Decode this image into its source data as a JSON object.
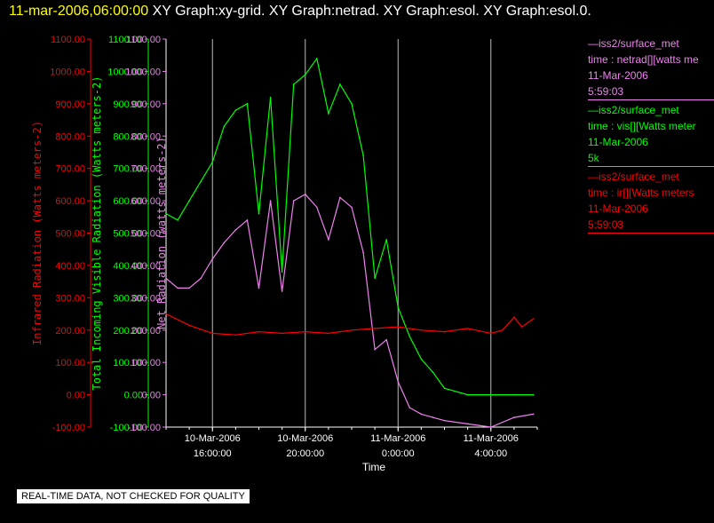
{
  "header": {
    "timestamp": "11-mar-2006,06:00:00",
    "titles": "XY Graph:xy-grid.  XY Graph:netrad.  XY Graph:esol.  XY Graph:esol.0."
  },
  "legend": [
    {
      "line1": "—iss2/surface_met",
      "line2": "time : netrad[][watts me",
      "line3": "11-Mar-2006",
      "line4": "5:59:03",
      "color": "#ee82ee"
    },
    {
      "line1": "—iss2/surface_met",
      "line2": "time : vis[][Watts meter",
      "line3": "11-Mar-2006",
      "line4": "5k",
      "color": "#00ff00"
    },
    {
      "line1": "—iss2/surface_met",
      "line2": "time : ir[][Watts meters",
      "line3": "11-Mar-2006",
      "line4": "5:59:03",
      "color": "#ff0000"
    }
  ],
  "footer": {
    "qc_note": "REAL-TIME DATA, NOT CHECKED FOR QUALITY"
  },
  "chart_data": {
    "type": "line",
    "xlabel": "Time",
    "x_range": [
      "2006-03-10 14:00",
      "2006-03-11 06:00"
    ],
    "x_ticks": [
      {
        "label1": "10-Mar-2006",
        "label2": "16:00:00",
        "x": "2006-03-10 16:00"
      },
      {
        "label1": "10-Mar-2006",
        "label2": "20:00:00",
        "x": "2006-03-10 20:00"
      },
      {
        "label1": "11-Mar-2006",
        "label2": "0:00:00",
        "x": "2006-03-11 00:00"
      },
      {
        "label1": "11-Mar-2006",
        "label2": "4:00:00",
        "x": "2006-03-11 04:00"
      }
    ],
    "y_axes": [
      {
        "label": "Infrared Radiation (Watts meters-2)",
        "color": "#ff0000",
        "ylim": [
          -100,
          1100
        ]
      },
      {
        "label": "Total Incoming Visible Radiation (Watts meters-2)",
        "color": "#00ff00",
        "ylim": [
          -100,
          1100
        ]
      },
      {
        "label": "Net Radiation (watts meters-2)",
        "color": "#ee82ee",
        "ylim": [
          -100,
          1100
        ]
      }
    ],
    "y_ticks": [
      "1100.00",
      "1000.00",
      "900.00",
      "800.00",
      "700.00",
      "600.00",
      "500.00",
      "400.00",
      "300.00",
      "200.00",
      "100.00",
      "0.00",
      "-100.00"
    ],
    "grid": "vertical lines at major x ticks",
    "series": [
      {
        "name": "iss2/surface_met time : vis[][Watts meters-2]",
        "color": "#00ff00",
        "x": [
          "2006-03-10 14:00",
          "2006-03-10 14:30",
          "2006-03-10 15:00",
          "2006-03-10 15:30",
          "2006-03-10 16:00",
          "2006-03-10 16:30",
          "2006-03-10 17:00",
          "2006-03-10 17:30",
          "2006-03-10 18:00",
          "2006-03-10 18:30",
          "2006-03-10 19:00",
          "2006-03-10 19:30",
          "2006-03-10 20:00",
          "2006-03-10 20:30",
          "2006-03-10 21:00",
          "2006-03-10 21:30",
          "2006-03-10 22:00",
          "2006-03-10 22:30",
          "2006-03-10 23:00",
          "2006-03-10 23:30",
          "2006-03-11 00:00",
          "2006-03-11 00:30",
          "2006-03-11 01:00",
          "2006-03-11 01:30",
          "2006-03-11 02:00",
          "2006-03-11 03:00",
          "2006-03-11 04:00",
          "2006-03-11 05:00",
          "2006-03-11 05:50"
        ],
        "y": [
          560,
          540,
          600,
          660,
          720,
          830,
          880,
          900,
          560,
          920,
          380,
          960,
          990,
          1040,
          870,
          960,
          900,
          740,
          360,
          480,
          270,
          180,
          110,
          70,
          20,
          0,
          0,
          0,
          0
        ]
      },
      {
        "name": "iss2/surface_met time : netrad[][watts meters-2]",
        "color": "#ee82ee",
        "x": [
          "2006-03-10 14:00",
          "2006-03-10 14:30",
          "2006-03-10 15:00",
          "2006-03-10 15:30",
          "2006-03-10 16:00",
          "2006-03-10 16:30",
          "2006-03-10 17:00",
          "2006-03-10 17:30",
          "2006-03-10 18:00",
          "2006-03-10 18:30",
          "2006-03-10 19:00",
          "2006-03-10 19:30",
          "2006-03-10 20:00",
          "2006-03-10 20:30",
          "2006-03-10 21:00",
          "2006-03-10 21:30",
          "2006-03-10 22:00",
          "2006-03-10 22:30",
          "2006-03-10 23:00",
          "2006-03-10 23:30",
          "2006-03-11 00:00",
          "2006-03-11 00:30",
          "2006-03-11 01:00",
          "2006-03-11 01:30",
          "2006-03-11 02:00",
          "2006-03-11 03:00",
          "2006-03-11 04:00",
          "2006-03-11 05:00",
          "2006-03-11 05:50"
        ],
        "y": [
          360,
          330,
          330,
          360,
          420,
          470,
          510,
          540,
          330,
          600,
          320,
          600,
          620,
          580,
          480,
          610,
          580,
          440,
          140,
          170,
          40,
          -40,
          -60,
          -70,
          -80,
          -90,
          -100,
          -70,
          -60
        ]
      },
      {
        "name": "iss2/surface_met time : ir[][Watts meters-2]",
        "color": "#ff0000",
        "x": [
          "2006-03-10 14:00",
          "2006-03-10 15:00",
          "2006-03-10 16:00",
          "2006-03-10 17:00",
          "2006-03-10 18:00",
          "2006-03-10 19:00",
          "2006-03-10 20:00",
          "2006-03-10 21:00",
          "2006-03-10 22:00",
          "2006-03-10 23:00",
          "2006-03-11 00:00",
          "2006-03-11 01:00",
          "2006-03-11 02:00",
          "2006-03-11 03:00",
          "2006-03-11 04:00",
          "2006-03-11 04:30",
          "2006-03-11 05:00",
          "2006-03-11 05:20",
          "2006-03-11 05:50"
        ],
        "y": [
          250,
          215,
          190,
          185,
          195,
          190,
          195,
          190,
          200,
          205,
          210,
          200,
          195,
          205,
          190,
          200,
          240,
          210,
          235
        ]
      }
    ]
  }
}
